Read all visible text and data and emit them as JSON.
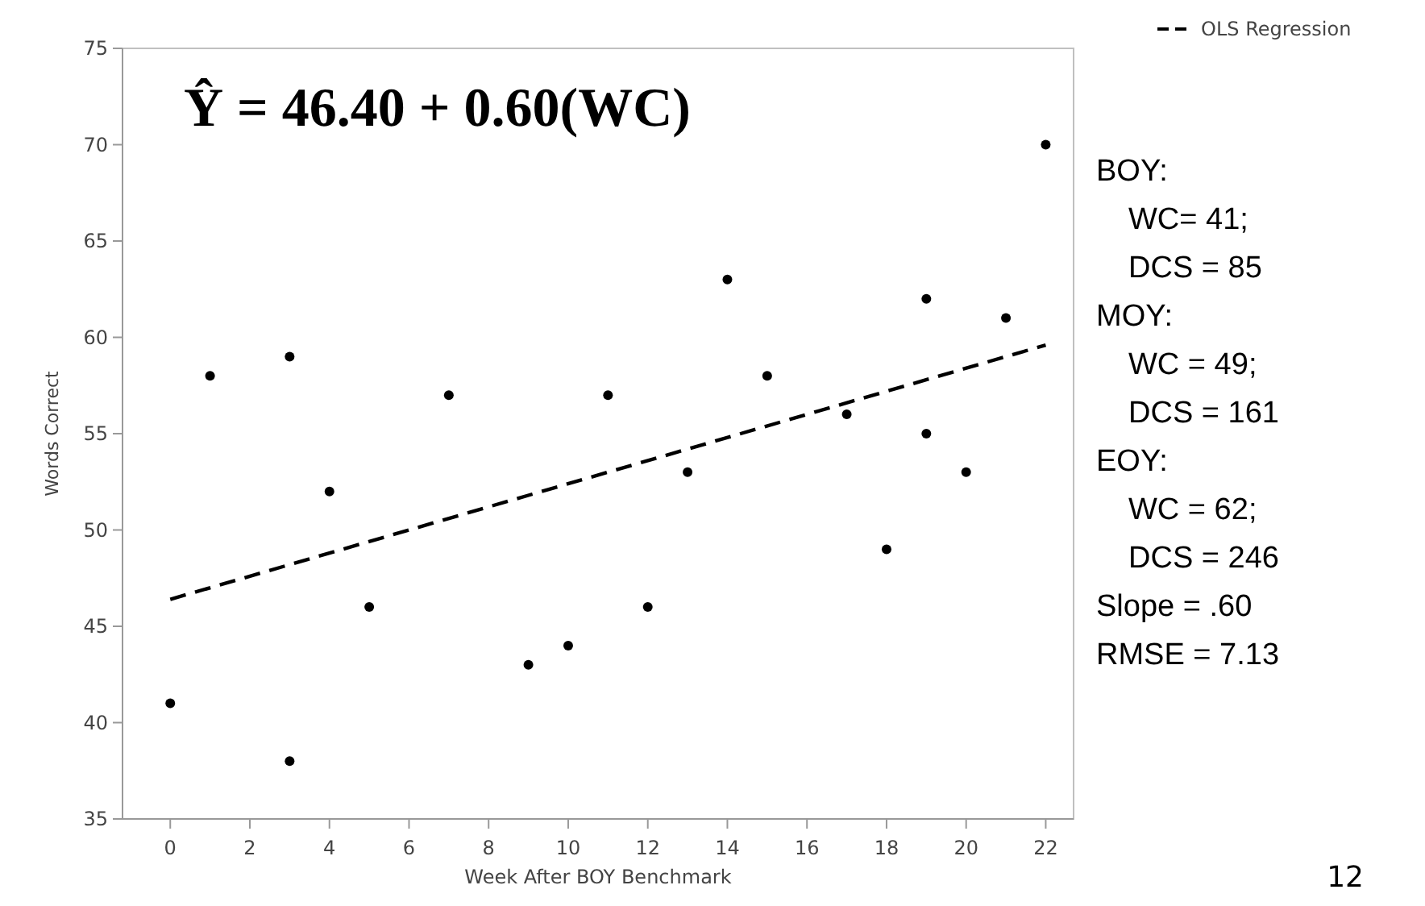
{
  "chart_data": {
    "type": "scatter",
    "xlabel": "Week After BOY Benchmark",
    "ylabel": "Words Correct",
    "xlim": [
      -1.2,
      22.7
    ],
    "ylim": [
      35,
      75
    ],
    "xticks": [
      0,
      2,
      4,
      6,
      8,
      10,
      12,
      14,
      16,
      18,
      20,
      22
    ],
    "yticks": [
      35,
      40,
      45,
      50,
      55,
      60,
      65,
      70,
      75
    ],
    "grid": false,
    "legend": "top right",
    "marker": "circle",
    "series": [
      {
        "color": "#000000",
        "x": [
          0,
          1,
          3,
          3,
          4,
          5,
          7,
          9,
          10,
          11,
          12,
          13,
          14,
          15,
          17,
          18,
          19,
          19,
          20,
          21,
          22
        ],
        "values": [
          41,
          58,
          59,
          38,
          52,
          46,
          57,
          43,
          44,
          57,
          46,
          53,
          63,
          58,
          56,
          49,
          62,
          55,
          53,
          61,
          70
        ]
      },
      {
        "type": "line",
        "name": "OLS Regression",
        "color": "#000000",
        "line_style": "dashed",
        "marker": "none",
        "x": [
          0,
          22
        ],
        "values": [
          46.4,
          59.6
        ]
      }
    ],
    "annotations": [
      "Ŷ = 46.40 + 0.60(WC)",
      "BOY:",
      "WC= 41;",
      "DCS = 85",
      "MOY:",
      "WC = 49;",
      "DCS = 161",
      "EOY:",
      "WC = 62;",
      "DCS = 246",
      "Slope = .60",
      "RMSE = 7.13",
      "12"
    ]
  }
}
